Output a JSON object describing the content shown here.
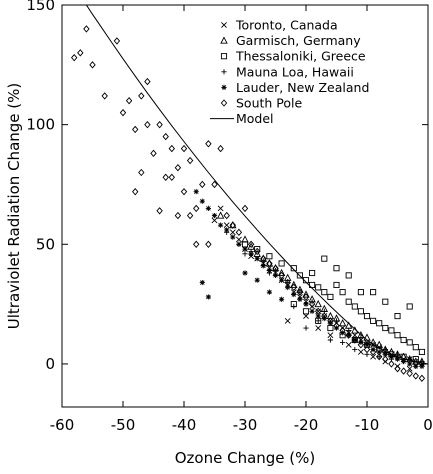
{
  "chart_data": {
    "type": "scatter",
    "title": "",
    "xlabel": "Ozone Change (%)",
    "ylabel": "Ultraviolet Radiation Change (%)",
    "xlim": [
      -60,
      0
    ],
    "ylim": [
      -18,
      150
    ],
    "xticks": [
      -60,
      -50,
      -40,
      -30,
      -20,
      -10,
      0
    ],
    "yticks": [
      0,
      50,
      100,
      150
    ],
    "xtick_labels": [
      "-60",
      "-50",
      "-40",
      "-30",
      "-20",
      "-10",
      "0"
    ],
    "ytick_labels": [
      "0",
      "50",
      "100",
      "150"
    ],
    "grid": false,
    "legend_position": "top-right",
    "series": [
      {
        "name": "Toronto, Canada",
        "marker": "x",
        "points": [
          [
            -35,
            60
          ],
          [
            -34,
            65
          ],
          [
            -33,
            58
          ],
          [
            -32,
            55
          ],
          [
            -31,
            52
          ],
          [
            -30,
            48
          ],
          [
            -29,
            45
          ],
          [
            -28,
            44
          ],
          [
            -27,
            42
          ],
          [
            -26,
            40
          ],
          [
            -25,
            38
          ],
          [
            -24,
            35
          ],
          [
            -23,
            33
          ],
          [
            -22,
            30
          ],
          [
            -21,
            28
          ],
          [
            -20,
            26
          ],
          [
            -19,
            24
          ],
          [
            -18,
            22
          ],
          [
            -17,
            20
          ],
          [
            -16,
            18
          ],
          [
            -15,
            17
          ],
          [
            -14,
            15
          ],
          [
            -13,
            13
          ],
          [
            -12,
            12
          ],
          [
            -11,
            10
          ],
          [
            -10,
            9
          ],
          [
            -9,
            8
          ],
          [
            -8,
            7
          ],
          [
            -7,
            5
          ],
          [
            -6,
            4
          ],
          [
            -5,
            3
          ],
          [
            -4,
            2
          ],
          [
            -3,
            2
          ],
          [
            -2,
            1
          ],
          [
            -1,
            0
          ],
          [
            -23,
            18
          ],
          [
            -20,
            20
          ],
          [
            -18,
            15
          ],
          [
            -16,
            12
          ],
          [
            -13,
            8
          ],
          [
            -11,
            5
          ],
          [
            -9,
            3
          ],
          [
            -7,
            1
          ],
          [
            -5,
            -1
          ],
          [
            -3,
            -2
          ]
        ]
      },
      {
        "name": "Garmisch, Germany",
        "marker": "triangle",
        "points": [
          [
            -34,
            62
          ],
          [
            -32,
            58
          ],
          [
            -30,
            52
          ],
          [
            -29,
            49
          ],
          [
            -28,
            46
          ],
          [
            -27,
            44
          ],
          [
            -26,
            42
          ],
          [
            -25,
            40
          ],
          [
            -24,
            38
          ],
          [
            -23,
            36
          ],
          [
            -22,
            33
          ],
          [
            -21,
            31
          ],
          [
            -20,
            29
          ],
          [
            -19,
            27
          ],
          [
            -18,
            25
          ],
          [
            -17,
            23
          ],
          [
            -16,
            20
          ],
          [
            -15,
            19
          ],
          [
            -14,
            17
          ],
          [
            -13,
            16
          ],
          [
            -12,
            14
          ],
          [
            -11,
            12
          ],
          [
            -10,
            11
          ],
          [
            -9,
            9
          ],
          [
            -8,
            8
          ],
          [
            -7,
            6
          ],
          [
            -6,
            5
          ],
          [
            -5,
            4
          ],
          [
            -4,
            3
          ],
          [
            -3,
            2
          ],
          [
            -2,
            1
          ],
          [
            -1,
            1
          ]
        ]
      },
      {
        "name": "Thessaloniki, Greece",
        "marker": "square",
        "points": [
          [
            -30,
            50
          ],
          [
            -28,
            48
          ],
          [
            -26,
            45
          ],
          [
            -24,
            42
          ],
          [
            -22,
            40
          ],
          [
            -21,
            37
          ],
          [
            -20,
            35
          ],
          [
            -19,
            33
          ],
          [
            -18,
            32
          ],
          [
            -17,
            30
          ],
          [
            -16,
            28
          ],
          [
            -15,
            33
          ],
          [
            -14,
            30
          ],
          [
            -13,
            26
          ],
          [
            -12,
            24
          ],
          [
            -11,
            22
          ],
          [
            -10,
            20
          ],
          [
            -9,
            18
          ],
          [
            -8,
            17
          ],
          [
            -7,
            15
          ],
          [
            -6,
            14
          ],
          [
            -5,
            12
          ],
          [
            -4,
            10
          ],
          [
            -3,
            9
          ],
          [
            -2,
            7
          ],
          [
            -1,
            5
          ],
          [
            -22,
            25
          ],
          [
            -20,
            22
          ],
          [
            -18,
            18
          ],
          [
            -16,
            15
          ],
          [
            -14,
            12
          ],
          [
            -12,
            10
          ],
          [
            -10,
            8
          ],
          [
            -8,
            6
          ],
          [
            -6,
            4
          ],
          [
            -4,
            3
          ],
          [
            -2,
            2
          ],
          [
            -15,
            40
          ],
          [
            -11,
            30
          ],
          [
            -7,
            26
          ],
          [
            -3,
            24
          ],
          [
            -9,
            30
          ],
          [
            -13,
            37
          ],
          [
            -5,
            20
          ],
          [
            -17,
            44
          ],
          [
            -19,
            38
          ]
        ]
      },
      {
        "name": "Mauna Loa, Hawaii",
        "marker": "plus",
        "points": [
          [
            -33,
            55
          ],
          [
            -31,
            50
          ],
          [
            -29,
            47
          ],
          [
            -27,
            43
          ],
          [
            -25,
            39
          ],
          [
            -23,
            34
          ],
          [
            -21,
            30
          ],
          [
            -19,
            26
          ],
          [
            -17,
            22
          ],
          [
            -15,
            18
          ],
          [
            -13,
            14
          ],
          [
            -11,
            11
          ],
          [
            -9,
            8
          ],
          [
            -7,
            6
          ],
          [
            -5,
            4
          ],
          [
            -3,
            2
          ],
          [
            -1,
            1
          ],
          [
            -20,
            15
          ],
          [
            -16,
            10
          ],
          [
            -12,
            6
          ],
          [
            -8,
            3
          ],
          [
            -4,
            1
          ],
          [
            -2,
            -1
          ],
          [
            -6,
            2
          ],
          [
            -10,
            4
          ],
          [
            -14,
            9
          ],
          [
            -18,
            18
          ],
          [
            -22,
            24
          ],
          [
            -26,
            38
          ],
          [
            -30,
            46
          ]
        ]
      },
      {
        "name": "Lauder, New Zealand",
        "marker": "asterisk",
        "points": [
          [
            -38,
            72
          ],
          [
            -37,
            68
          ],
          [
            -36,
            65
          ],
          [
            -35,
            62
          ],
          [
            -34,
            58
          ],
          [
            -33,
            56
          ],
          [
            -32,
            53
          ],
          [
            -31,
            50
          ],
          [
            -30,
            48
          ],
          [
            -29,
            46
          ],
          [
            -28,
            44
          ],
          [
            -27,
            41
          ],
          [
            -26,
            39
          ],
          [
            -25,
            37
          ],
          [
            -24,
            35
          ],
          [
            -23,
            32
          ],
          [
            -22,
            29
          ],
          [
            -21,
            27
          ],
          [
            -20,
            25
          ],
          [
            -19,
            22
          ],
          [
            -18,
            20
          ],
          [
            -17,
            19
          ],
          [
            -16,
            17
          ],
          [
            -15,
            15
          ],
          [
            -14,
            13
          ],
          [
            -13,
            12
          ],
          [
            -12,
            10
          ],
          [
            -11,
            9
          ],
          [
            -10,
            8
          ],
          [
            -9,
            6
          ],
          [
            -8,
            5
          ],
          [
            -7,
            4
          ],
          [
            -6,
            3
          ],
          [
            -5,
            2
          ],
          [
            -4,
            1
          ],
          [
            -3,
            0
          ],
          [
            -2,
            -1
          ],
          [
            -1,
            -1
          ],
          [
            -36,
            28
          ],
          [
            -37,
            34
          ],
          [
            -30,
            38
          ],
          [
            -28,
            35
          ],
          [
            -26,
            30
          ],
          [
            -24,
            27
          ]
        ]
      },
      {
        "name": "South Pole",
        "marker": "diamond",
        "points": [
          [
            -56,
            140
          ],
          [
            -57,
            130
          ],
          [
            -58,
            128
          ],
          [
            -55,
            125
          ],
          [
            -53,
            112
          ],
          [
            -51,
            135
          ],
          [
            -50,
            105
          ],
          [
            -49,
            110
          ],
          [
            -48,
            98
          ],
          [
            -47,
            112
          ],
          [
            -46,
            100
          ],
          [
            -46,
            118
          ],
          [
            -45,
            88
          ],
          [
            -44,
            100
          ],
          [
            -43,
            95
          ],
          [
            -42,
            90
          ],
          [
            -42,
            78
          ],
          [
            -41,
            82
          ],
          [
            -40,
            72
          ],
          [
            -40,
            90
          ],
          [
            -39,
            85
          ],
          [
            -38,
            65
          ],
          [
            -37,
            75
          ],
          [
            -36,
            92
          ],
          [
            -35,
            75
          ],
          [
            -34,
            90
          ],
          [
            -33,
            62
          ],
          [
            -32,
            58
          ],
          [
            -31,
            55
          ],
          [
            -30,
            65
          ],
          [
            -29,
            50
          ],
          [
            -28,
            47
          ],
          [
            -27,
            44
          ],
          [
            -26,
            42
          ],
          [
            -25,
            40
          ],
          [
            -24,
            37
          ],
          [
            -23,
            34
          ],
          [
            -22,
            32
          ],
          [
            -21,
            30
          ],
          [
            -20,
            28
          ],
          [
            -19,
            25
          ],
          [
            -18,
            22
          ],
          [
            -17,
            20
          ],
          [
            -16,
            18
          ],
          [
            -15,
            16
          ],
          [
            -14,
            14
          ],
          [
            -13,
            12
          ],
          [
            -12,
            10
          ],
          [
            -11,
            8
          ],
          [
            -10,
            6
          ],
          [
            -9,
            5
          ],
          [
            -8,
            3
          ],
          [
            -7,
            2
          ],
          [
            -6,
            0
          ],
          [
            -5,
            -2
          ],
          [
            -4,
            -3
          ],
          [
            -3,
            -4
          ],
          [
            -2,
            -5
          ],
          [
            -1,
            -6
          ],
          [
            -44,
            64
          ],
          [
            -47,
            80
          ],
          [
            -41,
            62
          ],
          [
            -38,
            50
          ],
          [
            -36,
            50
          ],
          [
            -43,
            78
          ],
          [
            -39,
            62
          ],
          [
            -48,
            72
          ]
        ]
      },
      {
        "name": "Model",
        "marker": "line",
        "points": [
          [
            -56,
            150
          ],
          [
            -55,
            146.1
          ],
          [
            -54,
            142.4
          ],
          [
            -52,
            134.9
          ],
          [
            -50,
            127.5
          ],
          [
            -48,
            120.3
          ],
          [
            -46,
            113.2
          ],
          [
            -44,
            106.3
          ],
          [
            -42,
            99.5
          ],
          [
            -40,
            92.9
          ],
          [
            -38,
            86.4
          ],
          [
            -36,
            80.0
          ],
          [
            -34,
            73.8
          ],
          [
            -32,
            67.7
          ],
          [
            -30,
            61.8
          ],
          [
            -28,
            56.0
          ],
          [
            -26,
            50.3
          ],
          [
            -24,
            44.8
          ],
          [
            -22,
            39.4
          ],
          [
            -20,
            34.2
          ],
          [
            -18,
            29.1
          ],
          [
            -16,
            24.1
          ],
          [
            -14,
            19.3
          ],
          [
            -12,
            14.6
          ],
          [
            -10,
            10.0
          ],
          [
            -8,
            6.5
          ],
          [
            -6,
            4.0
          ],
          [
            -4,
            2.2
          ],
          [
            -2,
            0.9
          ],
          [
            0,
            0
          ]
        ]
      }
    ]
  }
}
